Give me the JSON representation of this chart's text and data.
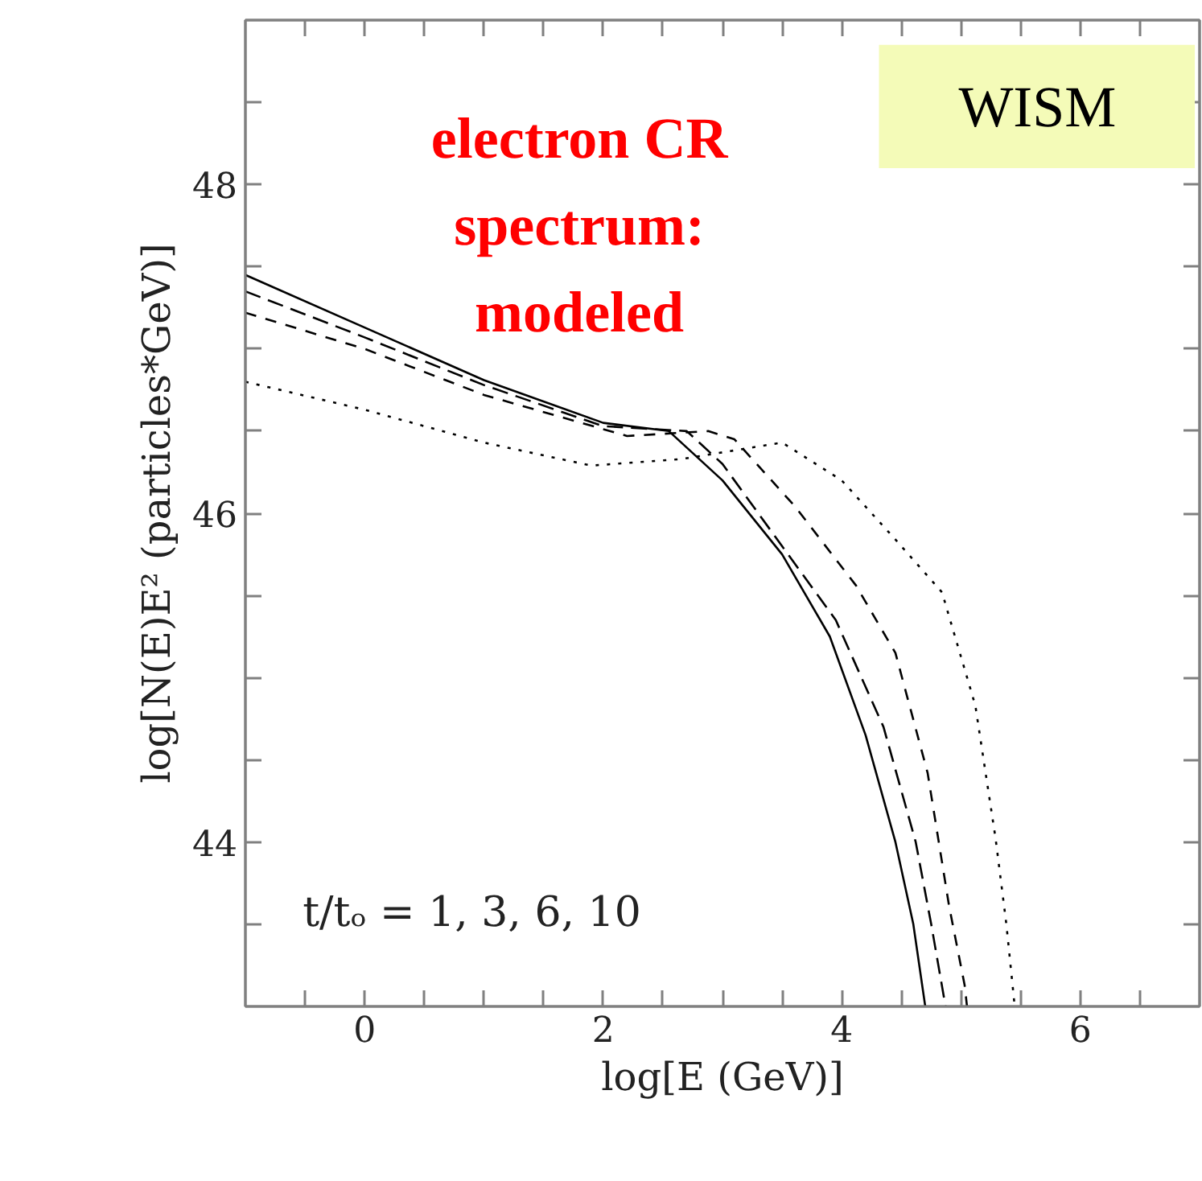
{
  "chart_data": {
    "type": "line",
    "xlabel": "log[E (GeV)]",
    "ylabel": "log[N(E)E² (particles*GeV)]",
    "annotations": [
      "electron CR\nspectrum:\nmodeled",
      "WISM",
      "t/tₒ = 1, 3, 6, 10"
    ],
    "xlim": [
      -1,
      7
    ],
    "ylim": [
      43,
      49
    ],
    "xticks": [
      {
        "value": -0.5,
        "label": null
      },
      0,
      {
        "value": 0.5,
        "label": null
      },
      {
        "value": 1,
        "label": null
      },
      {
        "value": 1.5,
        "label": null
      },
      2,
      {
        "value": 2.5,
        "label": null
      },
      {
        "value": 3,
        "label": null
      },
      {
        "value": 3.5,
        "label": null
      },
      4,
      {
        "value": 4.5,
        "label": null
      },
      {
        "value": 5,
        "label": null
      },
      {
        "value": 5.5,
        "label": null
      },
      6,
      {
        "value": 6.5,
        "label": null
      }
    ],
    "yticks": [
      {
        "value": 43.5,
        "label": null
      },
      44,
      {
        "value": 44.5,
        "label": null
      },
      {
        "value": 45,
        "label": null
      },
      {
        "value": 45.5,
        "label": null
      },
      46,
      {
        "value": 46.5,
        "label": null
      },
      {
        "value": 47,
        "label": null
      },
      {
        "value": 47.5,
        "label": null
      },
      48,
      {
        "value": 48.5,
        "label": null
      }
    ],
    "grid": false,
    "marker": "none",
    "series": [
      {
        "color": "#000000",
        "line_style": "solid",
        "x": [
          -1,
          0,
          1,
          2,
          2.55,
          3.0,
          3.5,
          3.9,
          4.2,
          4.45,
          4.6,
          4.7
        ],
        "values": [
          47.45,
          47.13,
          46.81,
          46.55,
          46.5,
          46.2,
          45.75,
          45.25,
          44.65,
          44.0,
          43.5,
          43.0
        ]
      },
      {
        "color": "#000000",
        "line_style": "dashed",
        "x": [
          -1,
          0,
          1,
          2,
          2.7,
          3.0,
          3.4,
          3.95,
          4.35,
          4.62,
          4.75,
          4.87
        ],
        "values": [
          47.35,
          47.07,
          46.78,
          46.53,
          46.5,
          46.3,
          45.9,
          45.35,
          44.7,
          44.0,
          43.5,
          43.0
        ]
      },
      {
        "color": "#000000",
        "line_style": "dashed",
        "x": [
          -1,
          0,
          1,
          2.2,
          2.88,
          3.1,
          3.61,
          4.12,
          4.45,
          4.72,
          4.9,
          5.03,
          5.05
        ],
        "values": [
          47.22,
          47.0,
          46.72,
          46.47,
          46.5,
          46.45,
          46.04,
          45.56,
          45.15,
          44.42,
          43.61,
          43.13,
          43.0
        ]
      },
      {
        "color": "#000000",
        "line_style": "dotted",
        "x": [
          -1,
          0,
          1,
          1.9,
          2.66,
          3.5,
          4.0,
          4.45,
          4.84,
          5.12,
          5.29,
          5.38,
          5.45
        ],
        "values": [
          46.8,
          46.63,
          46.43,
          46.29,
          46.33,
          46.43,
          46.2,
          45.84,
          45.52,
          44.83,
          44.02,
          43.5,
          43.0
        ]
      }
    ]
  }
}
